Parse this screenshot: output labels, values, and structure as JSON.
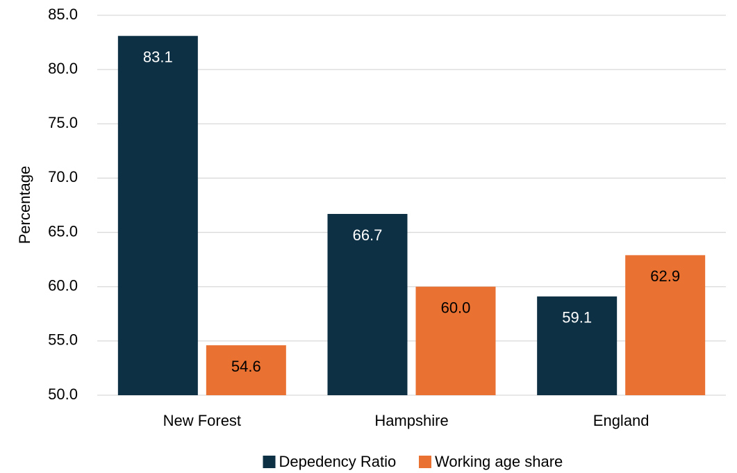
{
  "chart_data": {
    "type": "bar",
    "y_label": "Percentage",
    "categories": [
      "New Forest",
      "Hampshire",
      "England"
    ],
    "series": [
      {
        "name": "Depedency Ratio",
        "color": "#0e3044",
        "values": [
          83.1,
          66.7,
          59.1
        ],
        "label_color": "#ffffff"
      },
      {
        "name": "Working age share",
        "color": "#e97132",
        "values": [
          54.6,
          60.0,
          62.9
        ],
        "value_labels": [
          "54.6",
          "60.0",
          "62.9"
        ],
        "label_color": "#000000"
      }
    ],
    "ylim": [
      50,
      85
    ],
    "yticks": [
      {
        "value": 50,
        "label": "50.0"
      },
      {
        "value": 55,
        "label": "55.0"
      },
      {
        "value": 60,
        "label": "60.0"
      },
      {
        "value": 65,
        "label": "65.0"
      },
      {
        "value": 70,
        "label": "70.0"
      },
      {
        "value": 75,
        "label": "75.0"
      },
      {
        "value": 80,
        "label": "80.0"
      },
      {
        "value": 85,
        "label": "85.0"
      }
    ],
    "grid": true,
    "legend": "bottom"
  }
}
